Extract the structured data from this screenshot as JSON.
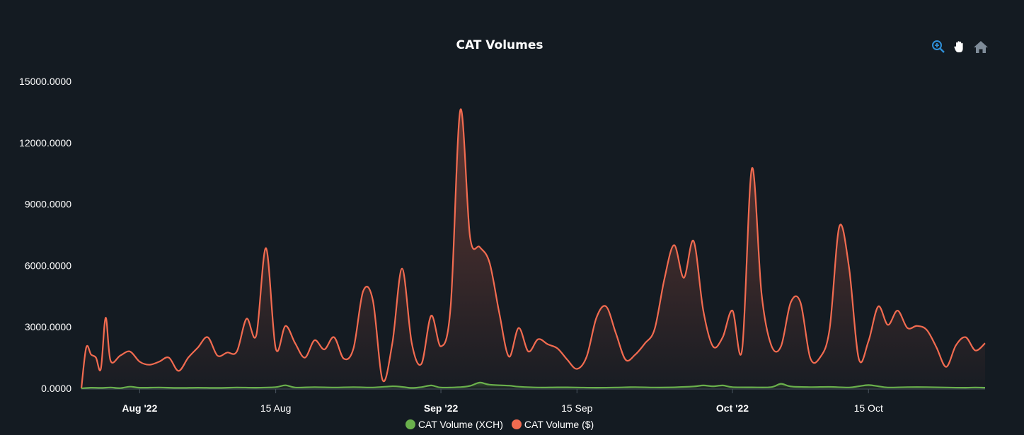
{
  "chart_data": {
    "type": "area",
    "title": "CAT Volumes",
    "ylim": [
      0,
      15000
    ],
    "y_ticks": [
      "0.0000",
      "3000.0000",
      "6000.0000",
      "9000.0000",
      "12000.0000",
      "15000.0000"
    ],
    "x_ticks": [
      {
        "date": "2022-08-01",
        "label": "Aug '22",
        "major": true
      },
      {
        "date": "2022-08-15",
        "label": "15 Aug",
        "major": false
      },
      {
        "date": "2022-09-01",
        "label": "Sep '22",
        "major": true
      },
      {
        "date": "2022-09-15",
        "label": "15 Sep",
        "major": false
      },
      {
        "date": "2022-10-01",
        "label": "Oct '22",
        "major": true
      },
      {
        "date": "2022-10-15",
        "label": "15 Oct",
        "major": false
      }
    ],
    "x_range": [
      "2022-07-26",
      "2022-10-27"
    ],
    "legend_position": "bottom-center",
    "grid": false,
    "series": [
      {
        "name": "CAT Volume (XCH)",
        "color": "#6ab04c",
        "points": [
          [
            "2022-07-26",
            0
          ],
          [
            "2022-07-27",
            30
          ],
          [
            "2022-07-28",
            20
          ],
          [
            "2022-07-29",
            40
          ],
          [
            "2022-07-30",
            10
          ],
          [
            "2022-07-31",
            80
          ],
          [
            "2022-08-01",
            30
          ],
          [
            "2022-08-03",
            40
          ],
          [
            "2022-08-05",
            20
          ],
          [
            "2022-08-07",
            30
          ],
          [
            "2022-08-09",
            20
          ],
          [
            "2022-08-11",
            40
          ],
          [
            "2022-08-13",
            30
          ],
          [
            "2022-08-15",
            60
          ],
          [
            "2022-08-16",
            150
          ],
          [
            "2022-08-17",
            40
          ],
          [
            "2022-08-19",
            60
          ],
          [
            "2022-08-21",
            40
          ],
          [
            "2022-08-23",
            60
          ],
          [
            "2022-08-25",
            40
          ],
          [
            "2022-08-27",
            100
          ],
          [
            "2022-08-28",
            70
          ],
          [
            "2022-08-29",
            20
          ],
          [
            "2022-08-30",
            60
          ],
          [
            "2022-08-31",
            140
          ],
          [
            "2022-09-01",
            40
          ],
          [
            "2022-09-03",
            60
          ],
          [
            "2022-09-04",
            120
          ],
          [
            "2022-09-05",
            280
          ],
          [
            "2022-09-06",
            180
          ],
          [
            "2022-09-08",
            130
          ],
          [
            "2022-09-09",
            80
          ],
          [
            "2022-09-11",
            40
          ],
          [
            "2022-09-13",
            50
          ],
          [
            "2022-09-15",
            40
          ],
          [
            "2022-09-17",
            30
          ],
          [
            "2022-09-19",
            40
          ],
          [
            "2022-09-21",
            60
          ],
          [
            "2022-09-23",
            40
          ],
          [
            "2022-09-25",
            50
          ],
          [
            "2022-09-27",
            90
          ],
          [
            "2022-09-28",
            140
          ],
          [
            "2022-09-29",
            100
          ],
          [
            "2022-09-30",
            140
          ],
          [
            "2022-10-01",
            60
          ],
          [
            "2022-10-03",
            50
          ],
          [
            "2022-10-05",
            60
          ],
          [
            "2022-10-06",
            220
          ],
          [
            "2022-10-07",
            90
          ],
          [
            "2022-10-09",
            60
          ],
          [
            "2022-10-11",
            70
          ],
          [
            "2022-10-13",
            40
          ],
          [
            "2022-10-14",
            100
          ],
          [
            "2022-10-15",
            160
          ],
          [
            "2022-10-16",
            100
          ],
          [
            "2022-10-17",
            40
          ],
          [
            "2022-10-19",
            60
          ],
          [
            "2022-10-21",
            60
          ],
          [
            "2022-10-23",
            40
          ],
          [
            "2022-10-25",
            30
          ],
          [
            "2022-10-26",
            40
          ],
          [
            "2022-10-27",
            30
          ]
        ]
      },
      {
        "name": "CAT Volume ($)",
        "color": "#f26b50",
        "points": [
          [
            "2022-07-26",
            0
          ],
          [
            "2022-07-26T12",
            2000
          ],
          [
            "2022-07-27",
            1650
          ],
          [
            "2022-07-27T12",
            1500
          ],
          [
            "2022-07-28",
            950
          ],
          [
            "2022-07-28T12",
            3450
          ],
          [
            "2022-07-29",
            1350
          ],
          [
            "2022-07-30",
            1600
          ],
          [
            "2022-07-31",
            1800
          ],
          [
            "2022-08-01",
            1300
          ],
          [
            "2022-08-02",
            1150
          ],
          [
            "2022-08-03",
            1300
          ],
          [
            "2022-08-04",
            1500
          ],
          [
            "2022-08-05",
            850
          ],
          [
            "2022-08-06",
            1500
          ],
          [
            "2022-08-07",
            2000
          ],
          [
            "2022-08-08",
            2500
          ],
          [
            "2022-08-09",
            1600
          ],
          [
            "2022-08-10",
            1750
          ],
          [
            "2022-08-11",
            1800
          ],
          [
            "2022-08-12",
            3400
          ],
          [
            "2022-08-13",
            2600
          ],
          [
            "2022-08-14",
            6850
          ],
          [
            "2022-08-15",
            1950
          ],
          [
            "2022-08-16",
            3050
          ],
          [
            "2022-08-17",
            2200
          ],
          [
            "2022-08-18",
            1500
          ],
          [
            "2022-08-19",
            2350
          ],
          [
            "2022-08-20",
            1900
          ],
          [
            "2022-08-21",
            2500
          ],
          [
            "2022-08-22",
            1450
          ],
          [
            "2022-08-23",
            1950
          ],
          [
            "2022-08-24",
            4750
          ],
          [
            "2022-08-25",
            4300
          ],
          [
            "2022-08-26",
            400
          ],
          [
            "2022-08-27",
            2200
          ],
          [
            "2022-08-28",
            5850
          ],
          [
            "2022-08-29",
            2200
          ],
          [
            "2022-08-30",
            1200
          ],
          [
            "2022-08-31",
            3550
          ],
          [
            "2022-09-01",
            2050
          ],
          [
            "2022-09-02",
            4000
          ],
          [
            "2022-09-03",
            13600
          ],
          [
            "2022-09-04",
            7400
          ],
          [
            "2022-09-05",
            6900
          ],
          [
            "2022-09-06",
            6150
          ],
          [
            "2022-09-07",
            3700
          ],
          [
            "2022-09-08",
            1550
          ],
          [
            "2022-09-09",
            2950
          ],
          [
            "2022-09-10",
            1800
          ],
          [
            "2022-09-11",
            2400
          ],
          [
            "2022-09-12",
            2150
          ],
          [
            "2022-09-13",
            1950
          ],
          [
            "2022-09-14",
            1400
          ],
          [
            "2022-09-15",
            950
          ],
          [
            "2022-09-16",
            1550
          ],
          [
            "2022-09-17",
            3450
          ],
          [
            "2022-09-18",
            4000
          ],
          [
            "2022-09-19",
            2700
          ],
          [
            "2022-09-20",
            1400
          ],
          [
            "2022-09-21",
            1650
          ],
          [
            "2022-09-22",
            2200
          ],
          [
            "2022-09-23",
            2900
          ],
          [
            "2022-09-24",
            5350
          ],
          [
            "2022-09-25",
            7000
          ],
          [
            "2022-09-26",
            5400
          ],
          [
            "2022-09-27",
            7200
          ],
          [
            "2022-09-28",
            3800
          ],
          [
            "2022-09-29",
            2050
          ],
          [
            "2022-09-30",
            2500
          ],
          [
            "2022-10-01",
            3800
          ],
          [
            "2022-10-02",
            1900
          ],
          [
            "2022-10-03",
            10750
          ],
          [
            "2022-10-04",
            4600
          ],
          [
            "2022-10-05",
            2100
          ],
          [
            "2022-10-06",
            2050
          ],
          [
            "2022-10-07",
            4200
          ],
          [
            "2022-10-08",
            4200
          ],
          [
            "2022-10-09",
            1500
          ],
          [
            "2022-10-10",
            1500
          ],
          [
            "2022-10-11",
            2900
          ],
          [
            "2022-10-12",
            7900
          ],
          [
            "2022-10-13",
            5900
          ],
          [
            "2022-10-14",
            1450
          ],
          [
            "2022-10-15",
            2300
          ],
          [
            "2022-10-16",
            4000
          ],
          [
            "2022-10-17",
            3100
          ],
          [
            "2022-10-18",
            3800
          ],
          [
            "2022-10-19",
            2950
          ],
          [
            "2022-10-20",
            3050
          ],
          [
            "2022-10-21",
            2850
          ],
          [
            "2022-10-22",
            2000
          ],
          [
            "2022-10-23",
            1050
          ],
          [
            "2022-10-24",
            2100
          ],
          [
            "2022-10-25",
            2500
          ],
          [
            "2022-10-26",
            1850
          ],
          [
            "2022-10-27",
            2200
          ]
        ]
      }
    ]
  },
  "toolbar": {
    "icons": [
      "zoom-icon",
      "pan-hand-icon",
      "home-reset-icon"
    ],
    "active_color": "#2f8fd8",
    "inactive_color": "#7f8c99"
  }
}
